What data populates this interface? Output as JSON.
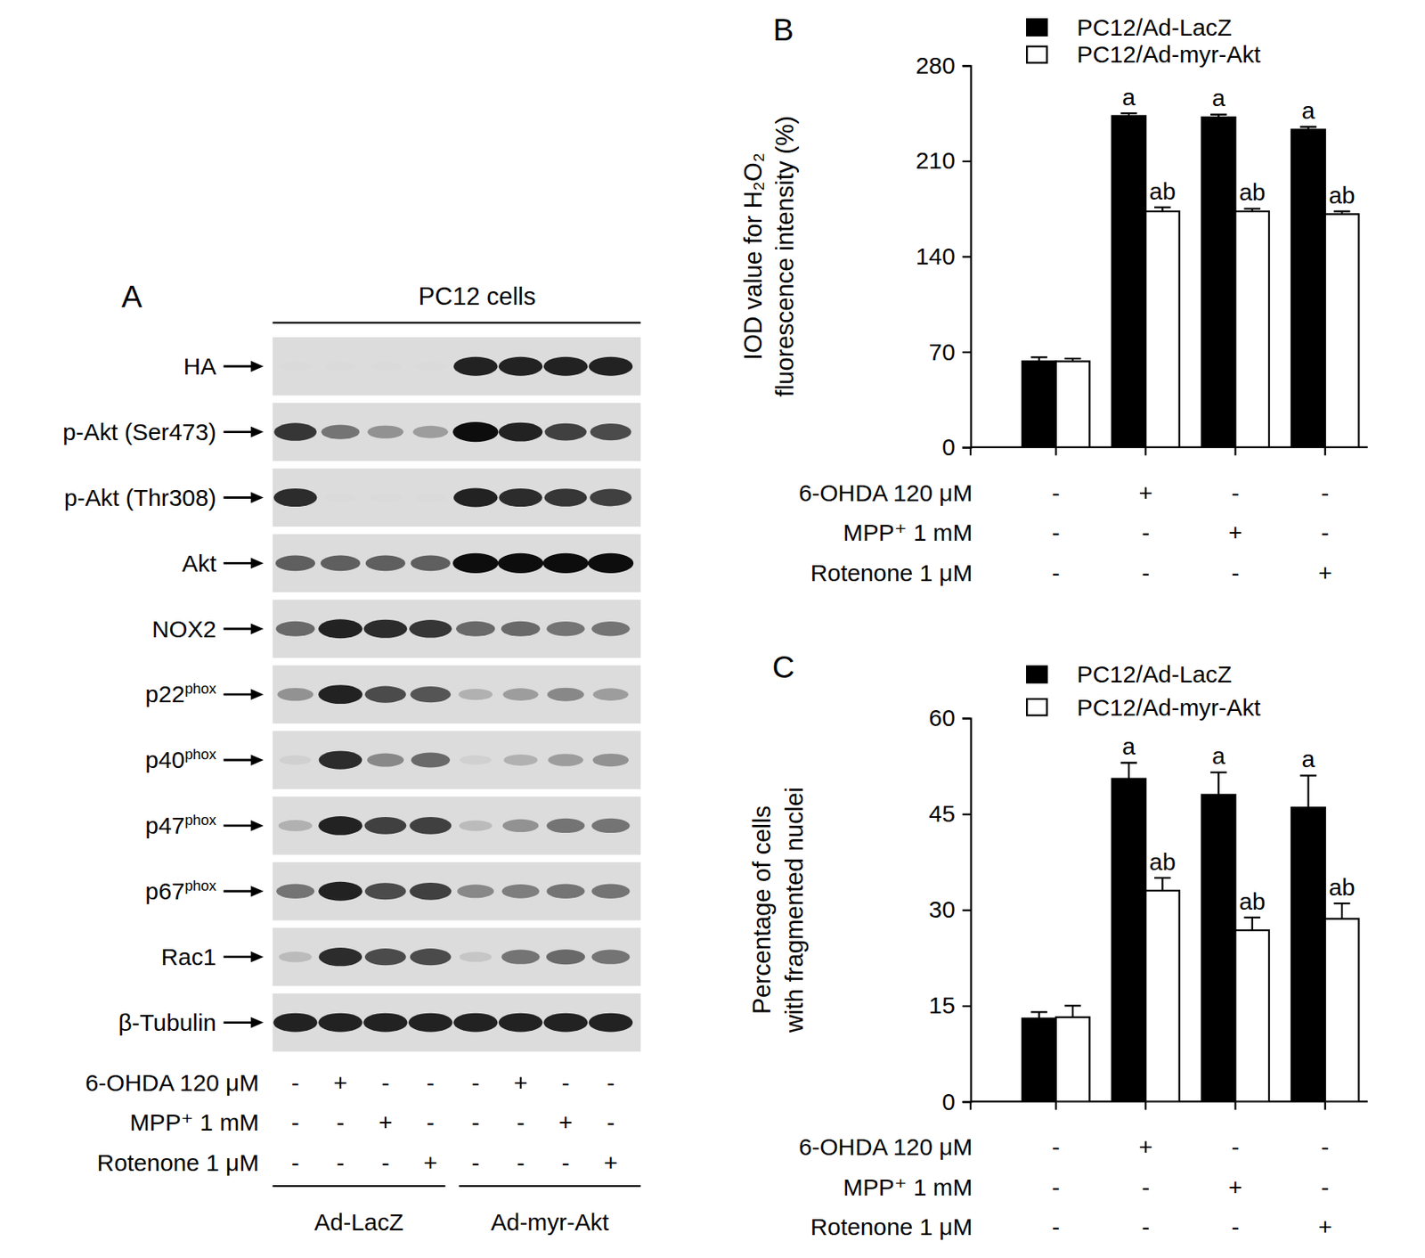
{
  "blot": {
    "panel": "A",
    "title": "PC12 cells",
    "rows": [
      {
        "label": "HA",
        "intensity": [
          0,
          0,
          0,
          0,
          0.9,
          0.9,
          0.9,
          0.9
        ]
      },
      {
        "label": "p-Akt (Ser473)",
        "intensity": [
          0.8,
          0.5,
          0.35,
          0.3,
          1,
          0.9,
          0.75,
          0.7
        ]
      },
      {
        "label": "p-Akt (Thr308)",
        "intensity": [
          0.85,
          0,
          0,
          0,
          0.9,
          0.85,
          0.8,
          0.75
        ]
      },
      {
        "label": "Akt",
        "intensity": [
          0.6,
          0.6,
          0.6,
          0.6,
          1,
          1,
          1,
          1
        ]
      },
      {
        "label": "NOX2",
        "intensity": [
          0.55,
          0.9,
          0.85,
          0.8,
          0.55,
          0.55,
          0.5,
          0.5
        ]
      },
      {
        "label": "p22",
        "sup": "phox",
        "intensity": [
          0.35,
          0.9,
          0.7,
          0.65,
          0.2,
          0.3,
          0.4,
          0.3
        ]
      },
      {
        "label": "p40",
        "sup": "phox",
        "intensity": [
          0.05,
          0.85,
          0.4,
          0.55,
          0.05,
          0.2,
          0.3,
          0.35
        ]
      },
      {
        "label": "p47",
        "sup": "phox",
        "intensity": [
          0.2,
          0.9,
          0.75,
          0.75,
          0.15,
          0.35,
          0.5,
          0.5
        ]
      },
      {
        "label": "p67",
        "sup": "phox",
        "intensity": [
          0.5,
          0.9,
          0.7,
          0.75,
          0.4,
          0.45,
          0.5,
          0.5
        ]
      },
      {
        "label": "Rac1",
        "intensity": [
          0.15,
          0.85,
          0.7,
          0.7,
          0.1,
          0.5,
          0.55,
          0.5
        ]
      },
      {
        "label": "β-Tubulin",
        "intensity": [
          0.9,
          0.9,
          0.9,
          0.9,
          0.9,
          0.9,
          0.9,
          0.9
        ]
      }
    ],
    "treatments": [
      {
        "label": "6-OHDA 120 μM",
        "signs": [
          "-",
          "+",
          "-",
          "-",
          "-",
          "+",
          "-",
          "-"
        ]
      },
      {
        "label": "MPP⁺ 1 mM",
        "signs": [
          "-",
          "-",
          "+",
          "-",
          "-",
          "-",
          "+",
          "-"
        ]
      },
      {
        "label": "Rotenone 1 μM",
        "signs": [
          "-",
          "-",
          "-",
          "+",
          "-",
          "-",
          "-",
          "+"
        ]
      }
    ],
    "groups": [
      "Ad-LacZ",
      "Ad-myr-Akt"
    ]
  },
  "chart_data": [
    {
      "type": "bar",
      "title": "B",
      "categories": [
        null,
        null,
        null,
        null
      ],
      "ylabel": [
        "IOD value for H₂O₂",
        "fluorescence intensity (%)"
      ],
      "ylim": [
        0,
        280
      ],
      "yticks": [
        0,
        70,
        140,
        210,
        280
      ],
      "tick_labels": "y",
      "legend": "top",
      "series": [
        {
          "name": "PC12/Ad-LacZ",
          "color": "#000000",
          "values": [
            63,
            243,
            242,
            233
          ],
          "errors": [
            3,
            2,
            2,
            2
          ],
          "annotations": [
            null,
            "a",
            "a",
            "a"
          ]
        },
        {
          "name": "PC12/Ad-myr-Akt",
          "color": "#ffffff",
          "values": [
            63,
            173,
            173,
            171
          ],
          "errors": [
            2,
            3,
            2,
            2
          ],
          "annotations": [
            null,
            "ab",
            "ab",
            "ab"
          ]
        }
      ],
      "treatments": [
        {
          "label": "6-OHDA 120 μM",
          "signs": [
            "-",
            "+",
            "-",
            "-"
          ]
        },
        {
          "label": "MPP⁺ 1 mM",
          "signs": [
            "-",
            "-",
            "+",
            "-"
          ]
        },
        {
          "label": "Rotenone 1 μM",
          "signs": [
            "-",
            "-",
            "-",
            "+"
          ]
        }
      ]
    },
    {
      "type": "bar",
      "title": "C",
      "categories": [
        null,
        null,
        null,
        null
      ],
      "ylabel": [
        "Percentage of cells",
        "with fragmented nuclei"
      ],
      "ylim": [
        0,
        60
      ],
      "yticks": [
        0,
        15,
        30,
        45,
        60
      ],
      "tick_labels": "y",
      "legend": "top",
      "series": [
        {
          "name": "PC12/Ad-LacZ",
          "color": "#000000",
          "values": [
            13,
            50.5,
            48,
            46
          ],
          "errors": [
            1,
            2.5,
            3.5,
            5
          ],
          "annotations": [
            null,
            "a",
            "a",
            "a"
          ]
        },
        {
          "name": "PC12/Ad-myr-Akt",
          "color": "#ffffff",
          "values": [
            13.2,
            33,
            26.8,
            28.6
          ],
          "errors": [
            1.8,
            2,
            2,
            2.4
          ],
          "annotations": [
            null,
            "ab",
            "ab",
            "ab"
          ]
        }
      ],
      "treatments": [
        {
          "label": "6-OHDA 120 μM",
          "signs": [
            "-",
            "+",
            "-",
            "-"
          ]
        },
        {
          "label": "MPP⁺ 1 mM",
          "signs": [
            "-",
            "-",
            "+",
            "-"
          ]
        },
        {
          "label": "Rotenone 1 μM",
          "signs": [
            "-",
            "-",
            "-",
            "+"
          ]
        }
      ]
    }
  ]
}
